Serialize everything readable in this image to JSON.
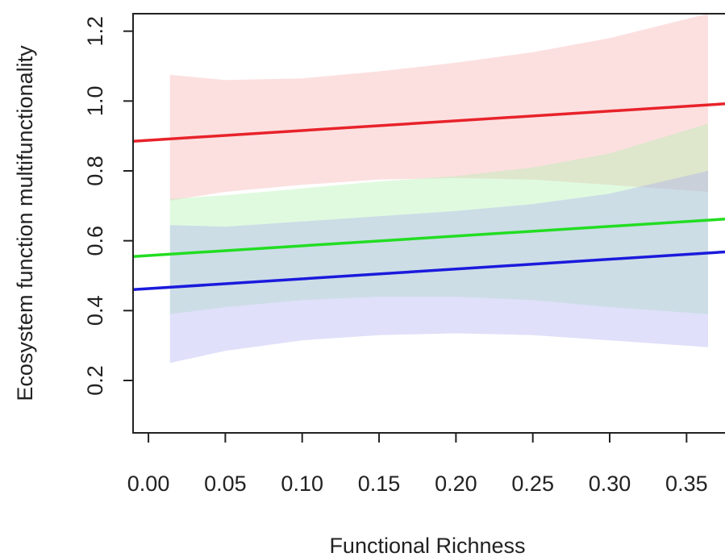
{
  "chart_data": {
    "type": "line",
    "xlabel": "Functional Richness",
    "ylabel": "Ecosystem function multifunctionality",
    "xlim": [
      -0.01,
      0.375
    ],
    "ylim": [
      0.05,
      1.25
    ],
    "xticks": [
      0.0,
      0.05,
      0.1,
      0.15,
      0.2,
      0.25,
      0.3,
      0.35
    ],
    "xtick_labels": [
      "0.00",
      "0.05",
      "0.10",
      "0.15",
      "0.20",
      "0.25",
      "0.30",
      "0.35"
    ],
    "yticks": [
      0.2,
      0.4,
      0.6,
      0.8,
      1.0,
      1.2
    ],
    "ytick_labels": [
      "0.2",
      "0.4",
      "0.6",
      "0.8",
      "1.0",
      "1.2"
    ],
    "grid": false,
    "series": [
      {
        "color": "#e8222a",
        "band_color": "#f6a6a6",
        "x": [
          -0.01,
          0.375
        ],
        "y": [
          0.885,
          0.992
        ],
        "band_x": [
          0.014,
          0.05,
          0.1,
          0.15,
          0.2,
          0.25,
          0.3,
          0.364
        ],
        "band_upper": [
          1.075,
          1.06,
          1.065,
          1.085,
          1.11,
          1.14,
          1.18,
          1.25
        ],
        "band_lower": [
          0.715,
          0.74,
          0.76,
          0.775,
          0.78,
          0.775,
          0.76,
          0.74
        ]
      },
      {
        "color": "#22dd22",
        "band_color": "#a6f2a6",
        "x": [
          -0.01,
          0.375
        ],
        "y": [
          0.555,
          0.662
        ],
        "band_x": [
          0.014,
          0.05,
          0.1,
          0.15,
          0.2,
          0.25,
          0.3,
          0.364
        ],
        "band_upper": [
          0.72,
          0.73,
          0.75,
          0.77,
          0.785,
          0.81,
          0.85,
          0.935
        ],
        "band_lower": [
          0.39,
          0.41,
          0.43,
          0.44,
          0.44,
          0.43,
          0.41,
          0.39
        ]
      },
      {
        "color": "#1a1adc",
        "band_color": "#a6a6f2",
        "x": [
          -0.01,
          0.375
        ],
        "y": [
          0.46,
          0.568
        ],
        "band_x": [
          0.014,
          0.05,
          0.1,
          0.15,
          0.2,
          0.25,
          0.3,
          0.364
        ],
        "band_upper": [
          0.645,
          0.64,
          0.655,
          0.67,
          0.685,
          0.705,
          0.735,
          0.8
        ],
        "band_lower": [
          0.25,
          0.285,
          0.315,
          0.33,
          0.335,
          0.33,
          0.315,
          0.295
        ]
      }
    ]
  }
}
